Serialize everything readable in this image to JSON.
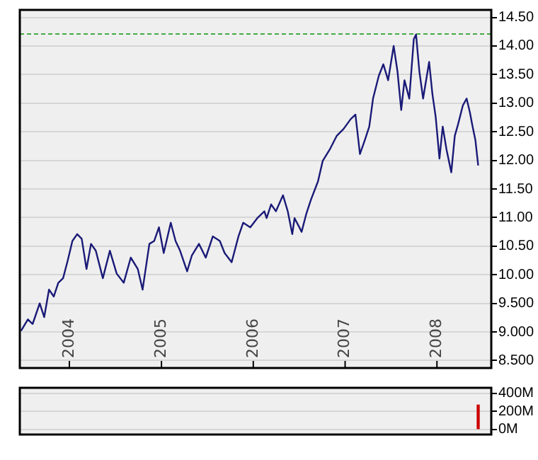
{
  "chart_data": [
    {
      "type": "line",
      "x": [
        "2003-06-23",
        "2003-07-20",
        "2003-08-08",
        "2003-09-05",
        "2003-09-23",
        "2003-10-12",
        "2003-10-31",
        "2003-11-18",
        "2003-12-07",
        "2003-12-26",
        "2004-01-13",
        "2004-02-01",
        "2004-02-19",
        "2004-03-09",
        "2004-03-27",
        "2004-04-15",
        "2004-05-13",
        "2004-06-10",
        "2004-07-07",
        "2004-08-04",
        "2004-09-01",
        "2004-09-29",
        "2004-10-18",
        "2004-11-14",
        "2004-12-03",
        "2004-12-22",
        "2005-01-10",
        "2005-02-07",
        "2005-02-26",
        "2005-03-16",
        "2005-04-13",
        "2005-05-02",
        "2005-05-30",
        "2005-06-26",
        "2005-07-24",
        "2005-08-21",
        "2005-09-09",
        "2005-10-07",
        "2005-11-03",
        "2005-11-22",
        "2005-12-20",
        "2006-01-17",
        "2006-02-14",
        "2006-02-23",
        "2006-03-13",
        "2006-04-01",
        "2006-04-29",
        "2006-05-18",
        "2006-06-05",
        "2006-06-14",
        "2006-07-03",
        "2006-07-12",
        "2006-07-31",
        "2006-08-18",
        "2006-09-15",
        "2006-10-04",
        "2006-11-01",
        "2006-11-29",
        "2006-12-26",
        "2007-01-23",
        "2007-02-11",
        "2007-03-01",
        "2007-03-20",
        "2007-04-07",
        "2007-04-22",
        "2007-05-15",
        "2007-06-02",
        "2007-06-21",
        "2007-07-13",
        "2007-07-28",
        "2007-08-12",
        "2007-08-25",
        "2007-09-13",
        "2007-10-01",
        "2007-10-10",
        "2007-10-23",
        "2007-11-07",
        "2007-12-01",
        "2007-12-14",
        "2007-12-27",
        "2008-01-11",
        "2008-01-24",
        "2008-02-08",
        "2008-02-27",
        "2008-03-12",
        "2008-03-25",
        "2008-04-13",
        "2008-04-28",
        "2008-05-11",
        "2008-05-20",
        "2008-06-02",
        "2008-06-13"
      ],
      "series": [
        {
          "color": "#1a1a78",
          "values": [
            9.02,
            9.22,
            9.14,
            9.5,
            9.26,
            9.74,
            9.62,
            9.86,
            9.94,
            10.26,
            10.59,
            10.71,
            10.63,
            10.1,
            10.54,
            10.42,
            9.94,
            10.42,
            10.02,
            9.86,
            10.3,
            10.1,
            9.74,
            10.54,
            10.59,
            10.83,
            10.38,
            10.91,
            10.59,
            10.42,
            10.06,
            10.34,
            10.54,
            10.3,
            10.67,
            10.59,
            10.38,
            10.22,
            10.67,
            10.91,
            10.83,
            10.99,
            11.11,
            10.99,
            11.23,
            11.11,
            11.39,
            11.11,
            10.71,
            10.99,
            10.83,
            10.75,
            11.07,
            11.31,
            11.63,
            11.99,
            12.19,
            12.43,
            12.55,
            12.72,
            12.8,
            12.11,
            12.35,
            12.59,
            13.08,
            13.48,
            13.68,
            13.4,
            14.0,
            13.56,
            12.88,
            13.4,
            13.08,
            14.12,
            14.2,
            13.56,
            13.08,
            13.72,
            13.16,
            12.76,
            12.03,
            12.59,
            12.19,
            11.79,
            12.43,
            12.63,
            12.96,
            13.08,
            12.84,
            12.63,
            12.35,
            11.91
          ]
        }
      ],
      "xlim": [
        "2003-06-18",
        "2008-08-04"
      ],
      "xticks": [
        {
          "value": "2004-01-01",
          "label": "2004"
        },
        {
          "value": "2005-01-01",
          "label": "2005"
        },
        {
          "value": "2006-01-01",
          "label": "2006"
        },
        {
          "value": "2007-01-01",
          "label": "2007"
        },
        {
          "value": "2008-01-01",
          "label": "2008"
        }
      ],
      "ylim": [
        8.37,
        14.63
      ],
      "yticks": [
        {
          "value": 8.5,
          "label": "8.500"
        },
        {
          "value": 9,
          "label": "9.000"
        },
        {
          "value": 9.5,
          "label": "9.500"
        },
        {
          "value": 10,
          "label": "10.00"
        },
        {
          "value": 10.5,
          "label": "10.50"
        },
        {
          "value": 11,
          "label": "11.00"
        },
        {
          "value": 11.5,
          "label": "11.50"
        },
        {
          "value": 12,
          "label": "12.00"
        },
        {
          "value": 12.5,
          "label": "12.50"
        },
        {
          "value": 13,
          "label": "13.00"
        },
        {
          "value": 13.5,
          "label": "13.50"
        },
        {
          "value": 14,
          "label": "14.00"
        },
        {
          "value": 14.5,
          "label": "14.50"
        }
      ],
      "ref_lines": [
        {
          "axis": "y",
          "value": 14.21,
          "color": "#44aa44",
          "line_style": "dashed"
        }
      ],
      "grid": "y",
      "legend": false,
      "marker": "none",
      "line_style": "solid"
    },
    {
      "type": "bar",
      "x": [
        "2008-06-13"
      ],
      "series": [
        {
          "color": "#cc0000",
          "values": [
            270000000
          ]
        }
      ],
      "xlim": [
        "2003-06-18",
        "2008-08-04"
      ],
      "ylim": [
        -57000000,
        461000000
      ],
      "yticks": [
        {
          "value": 0,
          "label": "0M"
        },
        {
          "value": 200000000,
          "label": "200M"
        },
        {
          "value": 400000000,
          "label": "400M"
        }
      ],
      "grid": "y",
      "legend": false,
      "tick_labels": "y"
    }
  ]
}
